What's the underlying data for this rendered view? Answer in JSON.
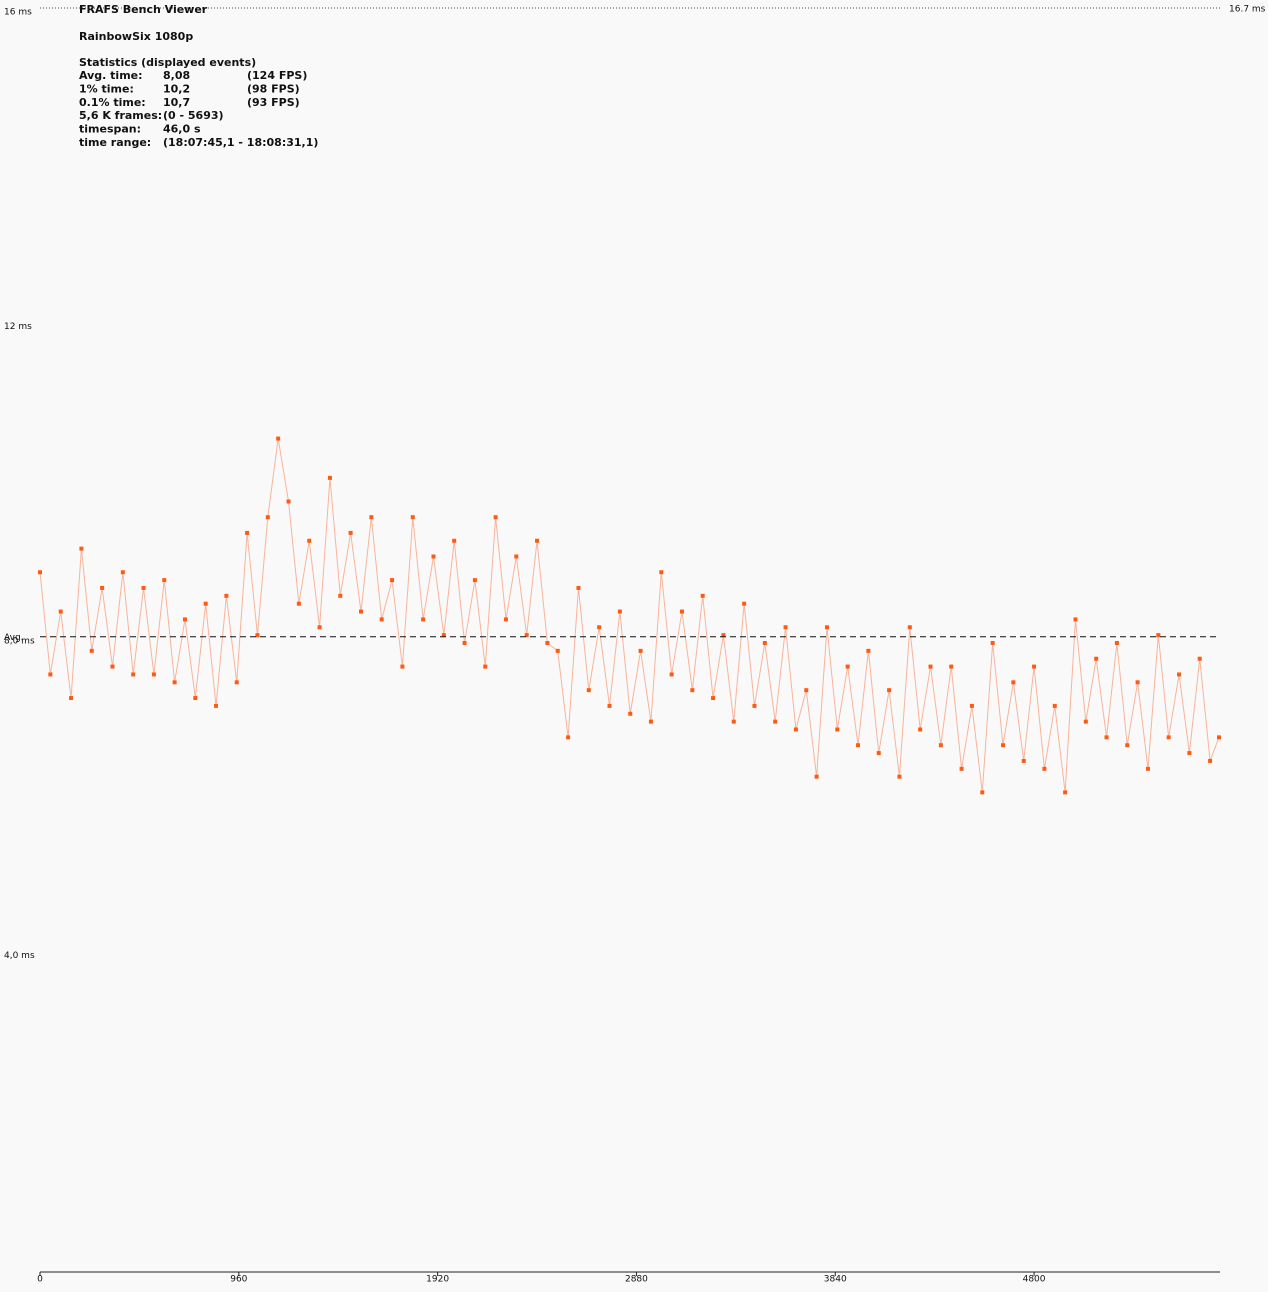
{
  "chart_data": {
    "type": "scatter",
    "title": "FRAFS Bench Viewer",
    "subtitle": "RainbowSix 1080p",
    "stats_heading": "Statistics (displayed events)",
    "stats": [
      [
        "Avg. time:",
        "8,08",
        "(124 FPS)"
      ],
      [
        "1% time:",
        "10,2",
        "(98 FPS)"
      ],
      [
        "0.1% time:",
        "10,7",
        "(93 FPS)"
      ],
      [
        "5,6 K frames:",
        "(0 - 5693)"
      ],
      [
        "timespan:",
        "46,0 s"
      ],
      [
        "time range:",
        "(18:07:45,1 - 18:08:31,1)"
      ]
    ],
    "limit_label": "16.7 ms",
    "avg": {
      "value": 8.08,
      "label": "Avg."
    },
    "xlim": [
      0,
      5693
    ],
    "xticks": [
      0,
      960,
      1920,
      2880,
      3840,
      4800
    ],
    "ylim": [
      0,
      16
    ],
    "yticks": [
      {
        "value": 4,
        "label": "4,0 ms"
      },
      {
        "value": 8,
        "label": "8,0 ms"
      },
      {
        "value": 12,
        "label": "12 ms"
      },
      {
        "value": 16,
        "label": "16 ms"
      }
    ],
    "color": "#ff5a14",
    "line_color": "#f7b49a",
    "x": [
      0,
      50,
      100,
      150,
      200,
      250,
      300,
      350,
      400,
      450,
      500,
      550,
      600,
      650,
      700,
      750,
      800,
      850,
      900,
      950,
      1000,
      1050,
      1100,
      1150,
      1200,
      1250,
      1300,
      1350,
      1400,
      1450,
      1500,
      1550,
      1600,
      1650,
      1700,
      1750,
      1800,
      1850,
      1900,
      1950,
      2000,
      2050,
      2100,
      2150,
      2200,
      2250,
      2300,
      2350,
      2400,
      2450,
      2500,
      2550,
      2600,
      2650,
      2700,
      2750,
      2800,
      2850,
      2900,
      2950,
      3000,
      3050,
      3100,
      3150,
      3200,
      3250,
      3300,
      3350,
      3400,
      3450,
      3500,
      3550,
      3600,
      3650,
      3700,
      3750,
      3800,
      3850,
      3900,
      3950,
      4000,
      4050,
      4100,
      4150,
      4200,
      4250,
      4300,
      4350,
      4400,
      4450,
      4500,
      4550,
      4600,
      4650,
      4700,
      4750,
      4800,
      4850,
      4900,
      4950,
      5000,
      5050,
      5100,
      5150,
      5200,
      5250,
      5300,
      5350,
      5400,
      5450,
      5500,
      5550,
      5600,
      5650,
      5693
    ],
    "values": [
      8.9,
      7.6,
      8.4,
      7.3,
      9.2,
      7.9,
      8.7,
      7.7,
      8.9,
      7.6,
      8.7,
      7.6,
      8.8,
      7.5,
      8.3,
      7.3,
      8.5,
      7.2,
      8.6,
      7.5,
      9.4,
      8.1,
      9.6,
      10.6,
      9.8,
      8.5,
      9.3,
      8.2,
      10.1,
      8.6,
      9.4,
      8.4,
      9.6,
      8.3,
      8.8,
      7.7,
      9.6,
      8.3,
      9.1,
      8.1,
      9.3,
      8.0,
      8.8,
      7.7,
      9.6,
      8.3,
      9.1,
      8.1,
      9.3,
      8.0,
      7.9,
      6.8,
      8.7,
      7.4,
      8.2,
      7.2,
      8.4,
      7.1,
      7.9,
      7.0,
      8.9,
      7.6,
      8.4,
      7.4,
      8.6,
      7.3,
      8.1,
      7.0,
      8.5,
      7.2,
      8.0,
      7.0,
      8.2,
      6.9,
      7.4,
      6.3,
      8.2,
      6.9,
      7.7,
      6.7,
      7.9,
      6.6,
      7.4,
      6.3,
      8.2,
      6.9,
      7.7,
      6.7,
      7.7,
      6.4,
      7.2,
      6.1,
      8.0,
      6.7,
      7.5,
      6.5,
      7.7,
      6.4,
      7.2,
      6.1,
      8.3,
      7.0,
      7.8,
      6.8,
      8.0,
      6.7,
      7.5,
      6.4,
      8.1,
      6.8,
      7.6,
      6.6,
      7.8,
      6.5,
      6.8
    ]
  }
}
